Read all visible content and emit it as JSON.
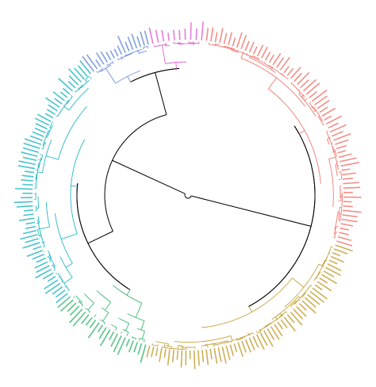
{
  "diagram": {
    "type": "circular-dendrogram",
    "trunk_color": "#000000",
    "background": "#ffffff",
    "clusters": [
      {
        "name": "",
        "color": "#f07b72",
        "leaf_count": 62
      },
      {
        "name": "",
        "color": "#c5a13a",
        "leaf_count": 58
      },
      {
        "name": "",
        "color": "#3dba72",
        "leaf_count": 22
      },
      {
        "name": "",
        "color": "#27b9c3",
        "leaf_count": 60
      },
      {
        "name": "",
        "color": "#6d8fd8",
        "leaf_count": 16
      },
      {
        "name": "",
        "color": "#e064d0",
        "leaf_count": 10
      }
    ]
  }
}
